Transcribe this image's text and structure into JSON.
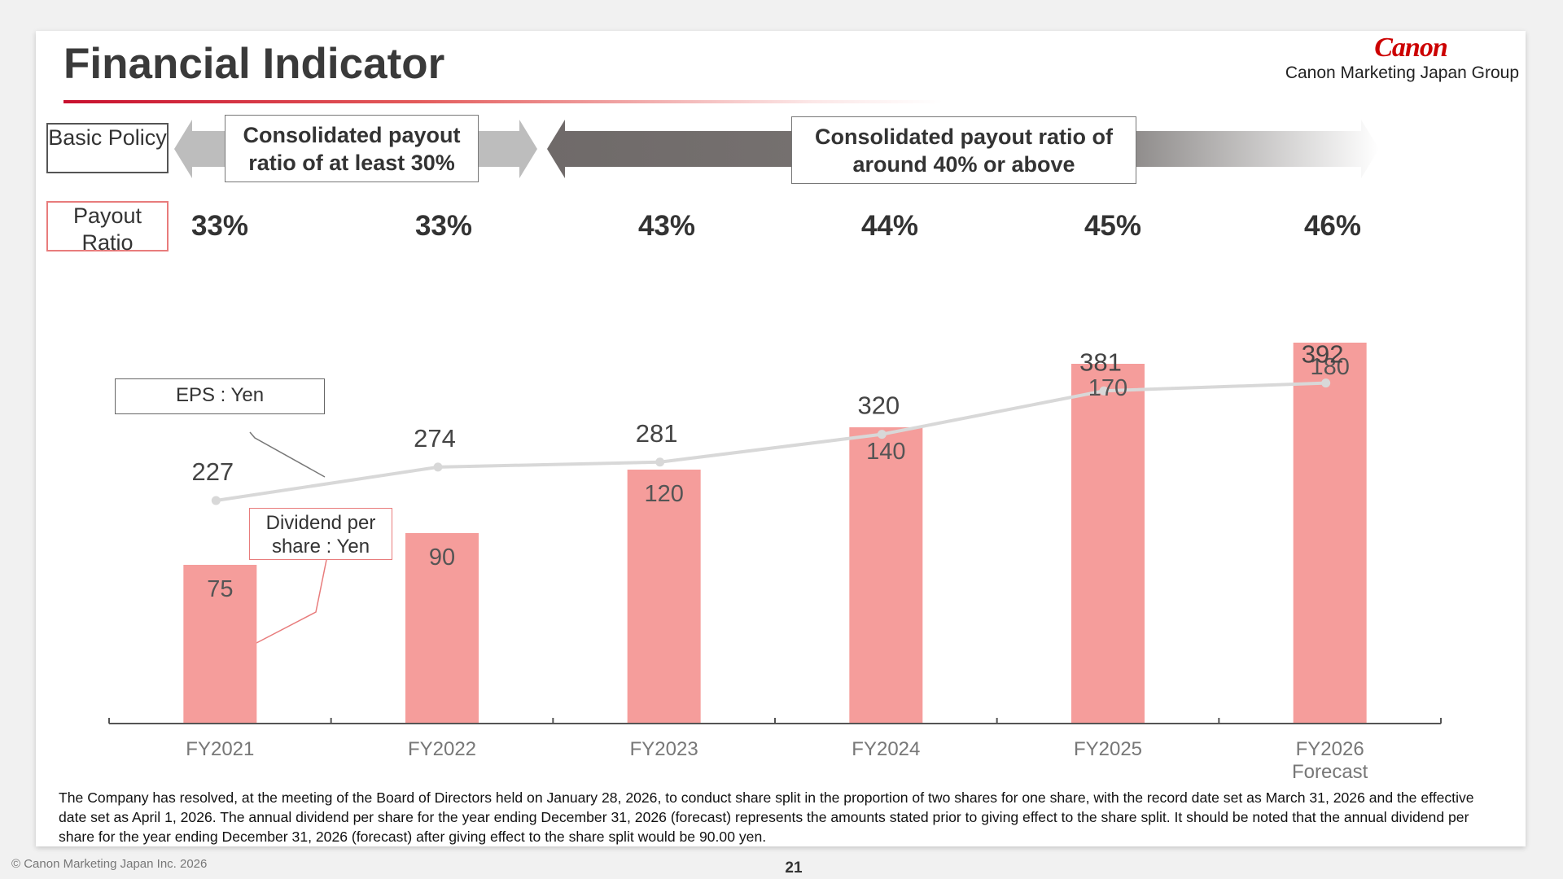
{
  "header": {
    "title": "Financial Indicator",
    "logo_text": "Canon",
    "logo_subtitle": "Canon Marketing Japan Group"
  },
  "labels": {
    "basic_policy": "Basic Policy",
    "payout_ratio": "Payout Ratio"
  },
  "policy": {
    "first": "Consolidated payout ratio of at least 30%",
    "second": "Consolidated payout ratio of around 40% or above"
  },
  "payout_ratios": [
    "33%",
    "33%",
    "43%",
    "44%",
    "45%",
    "46%"
  ],
  "callouts": {
    "eps": "EPS : Yen",
    "dividend": "Dividend per share : Yen"
  },
  "chart_data": {
    "type": "bar",
    "categories": [
      "FY2021",
      "FY2022",
      "FY2023",
      "FY2024",
      "FY2025",
      "FY2026 Forecast"
    ],
    "series": [
      {
        "name": "Dividend per share : Yen",
        "type": "bar",
        "values": [
          75,
          90,
          120,
          140,
          170,
          180
        ],
        "color": "#f59d9b"
      },
      {
        "name": "EPS : Yen",
        "type": "line",
        "values": [
          227,
          274,
          281,
          320,
          381,
          392
        ],
        "color": "#d8d8d8"
      }
    ],
    "ylabel": "",
    "xlabel": "",
    "grid": false
  },
  "footnote": "The Company has resolved, at the meeting of the Board of Directors held on January 28, 2026, to conduct share split in the proportion of two shares for one share, with the record date set as March 31, 2026 and the effective date set as April 1, 2026. The annual dividend per share for the year ending December 31, 2026 (forecast) represents the amounts stated prior to giving effect to the share split. It should be noted that the annual dividend per share for the year ending December 31, 2026 (forecast) after giving effect to the share split would be 90.00 yen.",
  "footer": {
    "copyright": "© Canon Marketing Japan Inc. 2026",
    "page_number": "21"
  },
  "colors": {
    "accent_red": "#c8102e",
    "bar": "#f59d9b",
    "eps_line": "#d8d8d8",
    "arrow_light": "#bdbdbd",
    "arrow_dark": "#6f6a69"
  }
}
